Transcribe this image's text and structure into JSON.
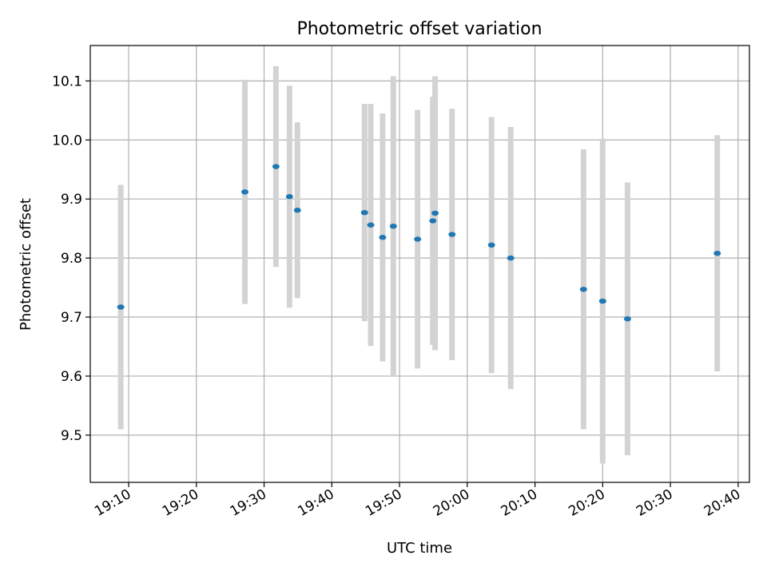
{
  "chart_data": {
    "type": "scatter",
    "title": "Photometric offset variation",
    "xlabel": "UTC time",
    "ylabel": "Photometric offset",
    "x_ticks": [
      "19:10",
      "19:20",
      "19:30",
      "19:40",
      "19:50",
      "20:00",
      "20:10",
      "20:20",
      "20:30",
      "20:40"
    ],
    "y_ticks": [
      "9.5",
      "9.6",
      "9.7",
      "9.8",
      "9.9",
      "10.0",
      "10.1"
    ],
    "xlim": [
      "19:04:20",
      "20:41:40"
    ],
    "ylim": [
      9.42,
      10.16
    ],
    "grid": true,
    "marker_color": "#1f77b4",
    "errorbar_color": "#d3d3d3",
    "points": [
      {
        "x": "19:08:50",
        "y": 9.717,
        "yerr": 0.207
      },
      {
        "x": "19:27:10",
        "y": 9.912,
        "yerr": 0.19
      },
      {
        "x": "19:31:45",
        "y": 9.955,
        "yerr": 0.17
      },
      {
        "x": "19:33:45",
        "y": 9.904,
        "yerr": 0.188
      },
      {
        "x": "19:34:55",
        "y": 9.881,
        "yerr": 0.149
      },
      {
        "x": "19:44:50",
        "y": 9.877,
        "yerr": 0.184
      },
      {
        "x": "19:45:45",
        "y": 9.856,
        "yerr": 0.205
      },
      {
        "x": "19:47:30",
        "y": 9.835,
        "yerr": 0.21
      },
      {
        "x": "19:49:05",
        "y": 9.854,
        "yerr": 0.254
      },
      {
        "x": "19:52:40",
        "y": 9.832,
        "yerr": 0.219
      },
      {
        "x": "19:54:55",
        "y": 9.863,
        "yerr": 0.21
      },
      {
        "x": "19:55:15",
        "y": 9.876,
        "yerr": 0.232
      },
      {
        "x": "19:57:45",
        "y": 9.84,
        "yerr": 0.213
      },
      {
        "x": "20:03:35",
        "y": 9.822,
        "yerr": 0.217
      },
      {
        "x": "20:06:25",
        "y": 9.8,
        "yerr": 0.222
      },
      {
        "x": "20:17:10",
        "y": 9.747,
        "yerr": 0.237
      },
      {
        "x": "20:20:00",
        "y": 9.727,
        "yerr": 0.275
      },
      {
        "x": "20:23:40",
        "y": 9.697,
        "yerr": 0.231
      },
      {
        "x": "20:36:55",
        "y": 9.808,
        "yerr": 0.2
      }
    ]
  }
}
